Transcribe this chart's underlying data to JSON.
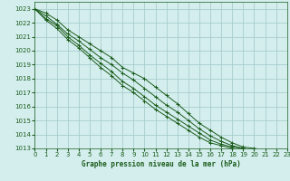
{
  "title": "Graphe pression niveau de la mer (hPa)",
  "background_color": "#d4eeee",
  "grid_color": "#a8cccc",
  "line_color": "#1a5c1a",
  "xlim": [
    0,
    23
  ],
  "ylim": [
    1013,
    1023.5
  ],
  "xticks": [
    0,
    1,
    2,
    3,
    4,
    5,
    6,
    7,
    8,
    9,
    10,
    11,
    12,
    13,
    14,
    15,
    16,
    17,
    18,
    19,
    20,
    21,
    22,
    23
  ],
  "yticks": [
    1013,
    1014,
    1015,
    1016,
    1017,
    1018,
    1019,
    1020,
    1021,
    1022,
    1023
  ],
  "series": [
    [
      1023.0,
      1022.7,
      1022.2,
      1021.5,
      1021.0,
      1020.5,
      1020.0,
      1019.5,
      1018.8,
      1018.4,
      1018.0,
      1017.4,
      1016.8,
      1016.2,
      1015.5,
      1014.8,
      1014.3,
      1013.8,
      1013.4,
      1013.1,
      1013.0,
      1012.9,
      1012.8,
      1012.8
    ],
    [
      1023.0,
      1022.5,
      1021.9,
      1021.2,
      1020.7,
      1020.1,
      1019.5,
      1019.0,
      1018.4,
      1017.9,
      1017.3,
      1016.7,
      1016.1,
      1015.6,
      1015.0,
      1014.4,
      1013.9,
      1013.5,
      1013.2,
      1013.0,
      1012.9,
      1012.9,
      1012.8,
      1012.8
    ],
    [
      1023.0,
      1022.3,
      1021.8,
      1021.0,
      1020.4,
      1019.7,
      1019.1,
      1018.5,
      1017.8,
      1017.3,
      1016.7,
      1016.1,
      1015.6,
      1015.1,
      1014.6,
      1014.1,
      1013.6,
      1013.3,
      1013.1,
      1013.0,
      1012.9,
      1012.9,
      1012.8,
      1012.8
    ],
    [
      1023.0,
      1022.2,
      1021.6,
      1020.8,
      1020.2,
      1019.5,
      1018.8,
      1018.2,
      1017.5,
      1017.0,
      1016.4,
      1015.8,
      1015.3,
      1014.8,
      1014.3,
      1013.8,
      1013.4,
      1013.2,
      1013.0,
      1012.9,
      1012.9,
      1012.8,
      1012.8,
      1012.8
    ]
  ]
}
